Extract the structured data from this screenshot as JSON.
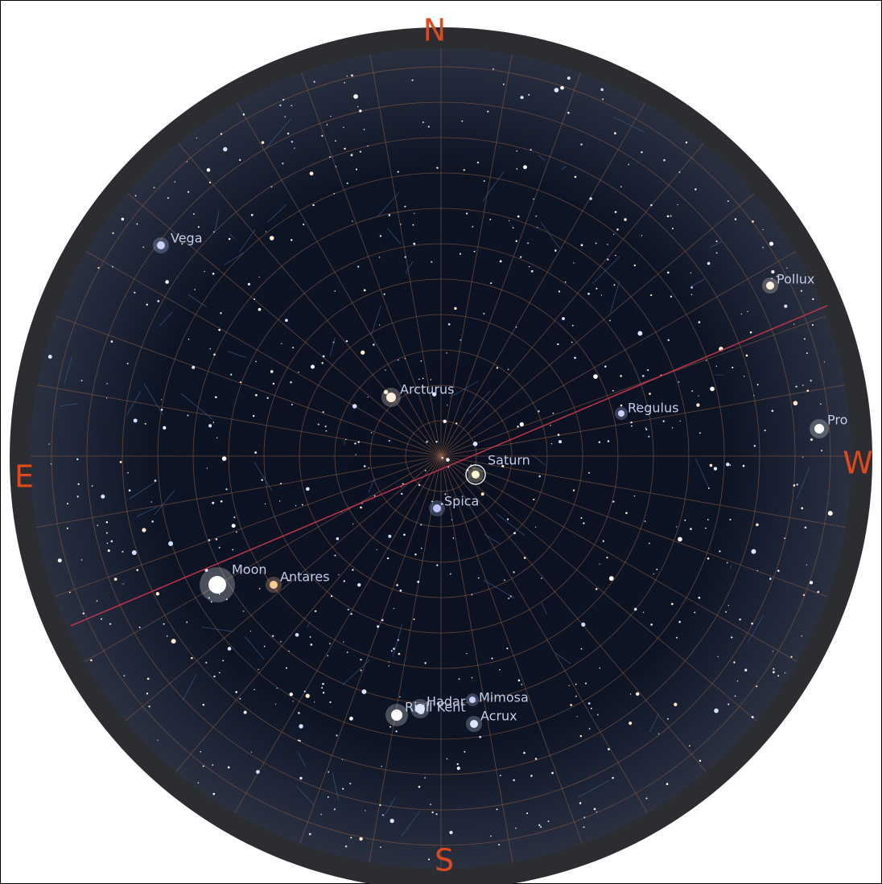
{
  "compass": {
    "north": "N",
    "east": "E",
    "south": "S",
    "west": "W"
  },
  "objects": [
    {
      "name": "Vega"
    },
    {
      "name": "Pollux"
    },
    {
      "name": "Pro"
    },
    {
      "name": "Arcturus"
    },
    {
      "name": "Regulus"
    },
    {
      "name": "Saturn"
    },
    {
      "name": "Spica"
    },
    {
      "name": "Moon"
    },
    {
      "name": "Antares"
    },
    {
      "name": "Rigil Kent"
    },
    {
      "name": "Hadar"
    },
    {
      "name": "Mimosa"
    },
    {
      "name": "Acrux"
    }
  ]
}
